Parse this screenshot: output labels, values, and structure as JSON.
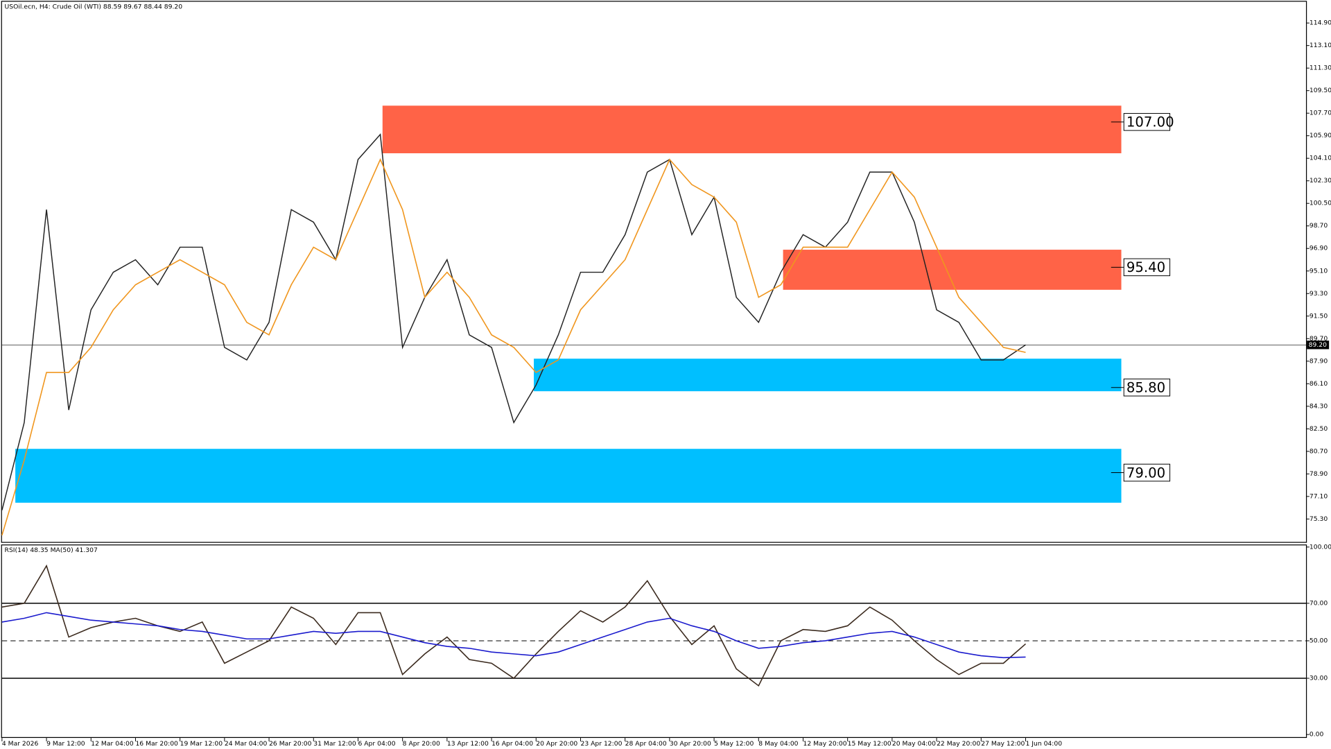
{
  "chart_data": [
    {
      "type": "line",
      "title": "USOil.ecn, H4:  Crude Oil (WTI)  88.59 89.67 88.44 89.20",
      "xlim": [
        0,
        58.6
      ],
      "xticks": [
        {
          "value": 0,
          "label": "4 Mar 2026"
        },
        {
          "value": 2,
          "label": "9 Mar 12:00"
        },
        {
          "value": 4,
          "label": "12 Mar 04:00"
        },
        {
          "value": 6,
          "label": "16 Mar 20:00"
        },
        {
          "value": 8,
          "label": "19 Mar 12:00"
        },
        {
          "value": 10,
          "label": "24 Mar 04:00"
        },
        {
          "value": 12,
          "label": "26 Mar 20:00"
        },
        {
          "value": 14,
          "label": "31 Mar 12:00"
        },
        {
          "value": 16,
          "label": "6 Apr 04:00"
        },
        {
          "value": 18,
          "label": "8 Apr 20:00"
        },
        {
          "value": 20,
          "label": "13 Apr 12:00"
        },
        {
          "value": 22,
          "label": "16 Apr 04:00"
        },
        {
          "value": 24,
          "label": "20 Apr 20:00"
        },
        {
          "value": 26,
          "label": "23 Apr 12:00"
        },
        {
          "value": 28,
          "label": "28 Apr 04:00"
        },
        {
          "value": 30,
          "label": "30 Apr 20:00"
        },
        {
          "value": 32,
          "label": "5 May 12:00"
        },
        {
          "value": 34,
          "label": "8 May 04:00"
        },
        {
          "value": 36,
          "label": "12 May 20:00"
        },
        {
          "value": 38,
          "label": "15 May 12:00"
        },
        {
          "value": 40,
          "label": "20 May 04:00"
        },
        {
          "value": 42,
          "label": "22 May 20:00"
        },
        {
          "value": 44,
          "label": "27 May 12:00"
        },
        {
          "value": 46,
          "label": "1 Jun 04:00"
        }
      ],
      "ylim": [
        73.4,
        116.6
      ],
      "yticks": [
        {
          "value": 75.3,
          "label": "75.30"
        },
        {
          "value": 77.1,
          "label": "77.10"
        },
        {
          "value": 78.9,
          "label": "78.90"
        },
        {
          "value": 80.7,
          "label": "80.70"
        },
        {
          "value": 82.5,
          "label": "82.50"
        },
        {
          "value": 84.3,
          "label": "84.30"
        },
        {
          "value": 86.1,
          "label": "86.10"
        },
        {
          "value": 87.9,
          "label": "87.90"
        },
        {
          "value": 89.7,
          "label": "89.70"
        },
        {
          "value": 91.5,
          "label": "91.50"
        },
        {
          "value": 93.3,
          "label": "93.30"
        },
        {
          "value": 95.1,
          "label": "95.10"
        },
        {
          "value": 96.9,
          "label": "96.90"
        },
        {
          "value": 98.7,
          "label": "98.70"
        },
        {
          "value": 100.5,
          "label": "100.50"
        },
        {
          "value": 102.3,
          "label": "102.30"
        },
        {
          "value": 104.1,
          "label": "104.10"
        },
        {
          "value": 105.9,
          "label": "105.90"
        },
        {
          "value": 107.7,
          "label": "107.70"
        },
        {
          "value": 109.5,
          "label": "109.50"
        },
        {
          "value": 111.3,
          "label": "111.30"
        },
        {
          "value": 113.1,
          "label": "113.10"
        },
        {
          "value": 114.9,
          "label": "114.90"
        }
      ],
      "series": [
        {
          "color": "#222222",
          "values": [
            76,
            83,
            100,
            84,
            92,
            95,
            96,
            94,
            97,
            97,
            89,
            88,
            91,
            100,
            99,
            96,
            104,
            106,
            89,
            93,
            96,
            90,
            89,
            83,
            86,
            90,
            95,
            95,
            98,
            103,
            104,
            98,
            101,
            93,
            91,
            95,
            98,
            97,
            99,
            103,
            103,
            99,
            92,
            91,
            88,
            88,
            89.2
          ]
        },
        {
          "color": "#f0961e",
          "values": [
            74,
            80,
            87,
            87,
            89,
            92,
            94,
            95,
            96,
            95,
            94,
            91,
            90,
            94,
            97,
            96,
            100,
            104,
            100,
            93,
            95,
            93,
            90,
            89,
            87,
            88,
            92,
            94,
            96,
            100,
            104,
            102,
            101,
            99,
            93,
            94,
            97,
            97,
            97,
            100,
            103,
            101,
            97,
            93,
            91,
            89,
            88.6
          ]
        }
      ],
      "last": {
        "value": 89.2,
        "label": "89.20"
      },
      "zones": [
        {
          "range": [
            104.5,
            108.3
          ],
          "from": 17.1,
          "to": 50.3,
          "color": "#ff6347",
          "level": {
            "value": 107,
            "label": "107.00"
          }
        },
        {
          "range": [
            93.6,
            96.8
          ],
          "from": 35.1,
          "to": 50.3,
          "color": "#ff6347",
          "level": {
            "value": 95.4,
            "label": "95.40"
          }
        },
        {
          "range": [
            85.5,
            88.1
          ],
          "from": 23.9,
          "to": 50.3,
          "color": "#00bfff",
          "level": {
            "value": 85.8,
            "label": "85.80"
          }
        },
        {
          "range": [
            76.6,
            80.9
          ],
          "from": 0.6,
          "to": 50.3,
          "color": "#00bfff",
          "level": {
            "value": 79,
            "label": "79.00"
          }
        }
      ]
    },
    {
      "type": "line",
      "title": "RSI(14) 48.35 MA(50) 41.307",
      "xlim": [
        0,
        58.6
      ],
      "ylim": [
        0,
        100
      ],
      "yticks": [
        {
          "value": 100,
          "label": "100.00"
        },
        {
          "value": 70,
          "label": "70.00"
        },
        {
          "value": 50,
          "label": "50.00"
        },
        {
          "value": 30,
          "label": "30.00"
        },
        {
          "value": 0,
          "label": "0.00"
        }
      ],
      "levels": [
        70,
        50,
        30
      ],
      "series": [
        {
          "color": "#3b2a1e",
          "values": [
            68,
            70,
            90,
            52,
            57,
            60,
            62,
            58,
            55,
            60,
            38,
            44,
            50,
            68,
            62,
            48,
            65,
            65,
            32,
            43,
            52,
            40,
            38,
            30,
            43,
            55,
            66,
            60,
            68,
            82,
            63,
            48,
            58,
            35,
            26,
            50,
            56,
            55,
            58,
            68,
            61,
            50,
            40,
            32,
            38,
            38,
            48.35
          ]
        },
        {
          "color": "#1a1acd",
          "values": [
            60,
            62,
            65,
            63,
            61,
            60,
            59,
            58,
            56,
            55,
            53,
            51,
            51,
            53,
            55,
            54,
            55,
            55,
            52,
            49,
            47,
            46,
            44,
            43,
            42,
            44,
            48,
            52,
            56,
            60,
            62,
            58,
            55,
            50,
            46,
            47,
            49,
            50,
            52,
            54,
            55,
            52,
            48,
            44,
            42,
            41,
            41.307
          ]
        }
      ]
    }
  ]
}
